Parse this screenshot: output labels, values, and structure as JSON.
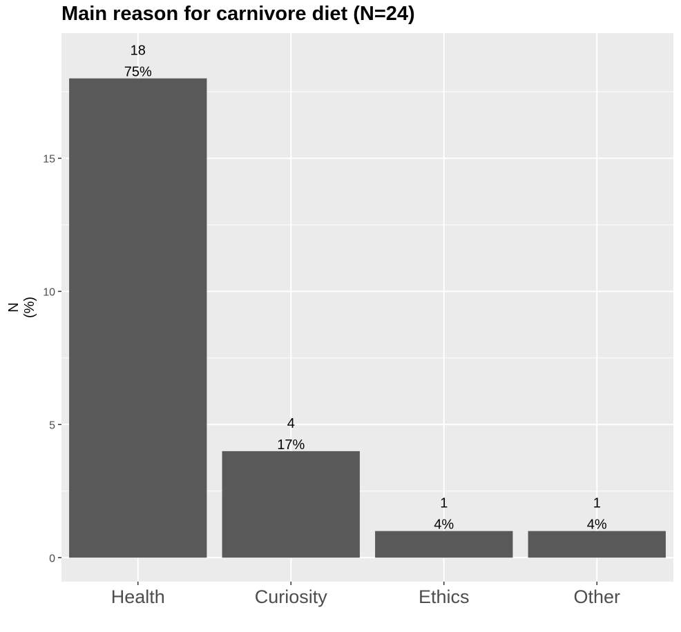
{
  "chart_data": {
    "type": "bar",
    "title": "Main reason for carnivore diet (N=24)",
    "xlabel": "",
    "ylabel": [
      "N",
      "(%)"
    ],
    "categories": [
      "Health",
      "Curiosity",
      "Ethics",
      "Other"
    ],
    "values": [
      18,
      4,
      1,
      1
    ],
    "percent_labels": [
      "75%",
      "17%",
      "4%",
      "4%"
    ],
    "yticks": [
      0,
      5,
      10,
      15
    ],
    "ylim": [
      -0.9,
      19.7
    ],
    "grid": true,
    "colors": {
      "bar": "#595959",
      "panel_background": "#ebebeb",
      "grid": "#ffffff"
    }
  }
}
